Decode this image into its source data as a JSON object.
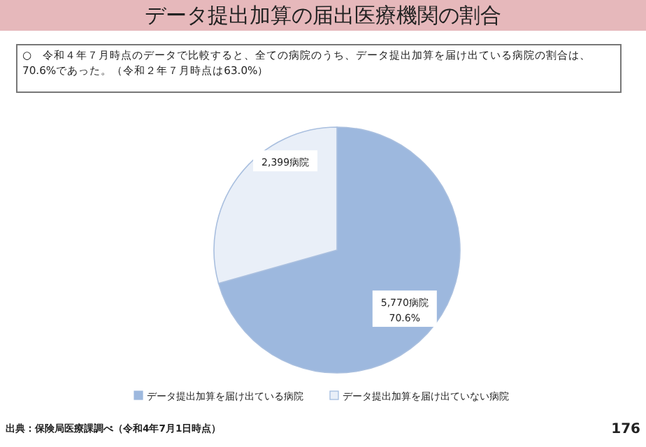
{
  "chart_data": {
    "type": "pie",
    "title": "データ提出加算の届出医療機関の割合",
    "subtitle": "○　令和４年７月時点のデータで比較すると、全ての病院のうち、データ提出加算を届け出ている病院の割合は、70.6%であった。（令和２年７月時点は63.0%）",
    "categories": [
      "データ提出加算を届け出ている病院",
      "データ提出加算を届け出ていない病院"
    ],
    "values": [
      5770,
      2399
    ],
    "colors": [
      "#9db8de",
      "#e9eff8"
    ],
    "value_labels": [
      "5,770病院\n70.6%",
      "2,399病院"
    ],
    "legend": "bottom",
    "annotations": [
      "出典：保険局医療課調べ（令和4年7月1日時点）",
      "176"
    ]
  }
}
